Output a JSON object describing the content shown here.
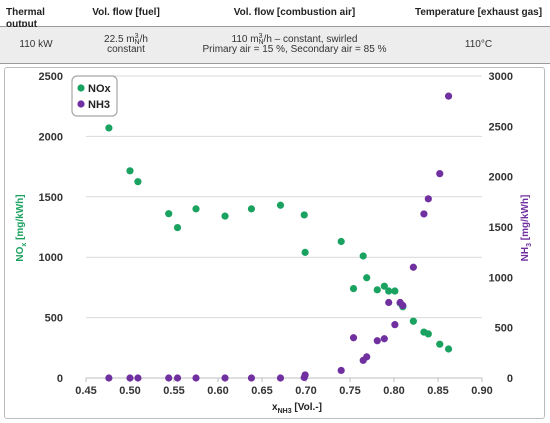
{
  "table": {
    "headers": [
      "Thermal output",
      "Vol. flow [fuel]",
      "Vol. flow [combustion air]",
      "Temperature [exhaust gas]"
    ],
    "thermal_output": "110 kW",
    "fuel_flow_value": "22.5 m",
    "fuel_flow_unit_sup": "3",
    "fuel_flow_unit_sub": "N",
    "fuel_flow_unit_tail": "/h",
    "fuel_flow_note": "constant",
    "air_flow_value": "110 m",
    "air_flow_unit_sup": "3",
    "air_flow_unit_sub": "N",
    "air_flow_unit_tail": "/h – constant, swirled",
    "air_split": "Primary air = 15 %, Secondary air = 85 %",
    "exhaust_temp": "110°C"
  },
  "colors": {
    "nox": "#1aa260",
    "nh3": "#7030a0",
    "grid": "#d9d9d9",
    "table_row_bg": "#ededed"
  },
  "chart_data": {
    "type": "scatter",
    "xlabel_main": "x",
    "xlabel_sub": "NH3",
    "xlabel_tail": " [Vol.-]",
    "ylabel_left_main": "NO",
    "ylabel_left_sub": "x",
    "ylabel_left_tail": " [mg/kWh]",
    "ylabel_right_main": "NH",
    "ylabel_right_sub": "3",
    "ylabel_right_tail": " [mg/kWh]",
    "xlim": [
      0.45,
      0.9
    ],
    "ylim_left": [
      0,
      2500
    ],
    "ylim_right": [
      0,
      3000
    ],
    "x_ticks": [
      "0.45",
      "0.50",
      "0.55",
      "0.60",
      "0.65",
      "0.70",
      "0.75",
      "0.80",
      "0.85",
      "0.90"
    ],
    "y_left_ticks": [
      "0",
      "500",
      "1000",
      "1500",
      "2000",
      "2500"
    ],
    "y_right_ticks": [
      "0",
      "500",
      "1000",
      "1500",
      "2000",
      "2500",
      "3000"
    ],
    "grid": "horizontal",
    "legend_position": "top-left",
    "series": [
      {
        "name": "NOx",
        "axis": "left",
        "color": "#1aa260",
        "points": [
          [
            0.476,
            2070
          ],
          [
            0.5,
            1715
          ],
          [
            0.509,
            1625
          ],
          [
            0.544,
            1360
          ],
          [
            0.554,
            1245
          ],
          [
            0.575,
            1400
          ],
          [
            0.608,
            1340
          ],
          [
            0.638,
            1400
          ],
          [
            0.671,
            1430
          ],
          [
            0.698,
            1350
          ],
          [
            0.699,
            1040
          ],
          [
            0.74,
            1130
          ],
          [
            0.754,
            740
          ],
          [
            0.765,
            1010
          ],
          [
            0.769,
            830
          ],
          [
            0.781,
            730
          ],
          [
            0.789,
            760
          ],
          [
            0.794,
            720
          ],
          [
            0.801,
            720
          ],
          [
            0.807,
            620
          ],
          [
            0.81,
            590
          ],
          [
            0.822,
            470
          ],
          [
            0.834,
            380
          ],
          [
            0.839,
            365
          ],
          [
            0.852,
            280
          ],
          [
            0.862,
            240
          ]
        ]
      },
      {
        "name": "NH3",
        "axis": "right",
        "color": "#7030a0",
        "points": [
          [
            0.476,
            0
          ],
          [
            0.5,
            0
          ],
          [
            0.509,
            0
          ],
          [
            0.544,
            0
          ],
          [
            0.554,
            0
          ],
          [
            0.575,
            0
          ],
          [
            0.608,
            0
          ],
          [
            0.638,
            0
          ],
          [
            0.671,
            0
          ],
          [
            0.698,
            5
          ],
          [
            0.699,
            30
          ],
          [
            0.74,
            75
          ],
          [
            0.754,
            400
          ],
          [
            0.765,
            175
          ],
          [
            0.769,
            210
          ],
          [
            0.781,
            370
          ],
          [
            0.789,
            390
          ],
          [
            0.794,
            750
          ],
          [
            0.801,
            530
          ],
          [
            0.807,
            750
          ],
          [
            0.81,
            720
          ],
          [
            0.822,
            1100
          ],
          [
            0.834,
            1630
          ],
          [
            0.839,
            1780
          ],
          [
            0.852,
            2030
          ],
          [
            0.862,
            2800
          ]
        ]
      }
    ]
  }
}
